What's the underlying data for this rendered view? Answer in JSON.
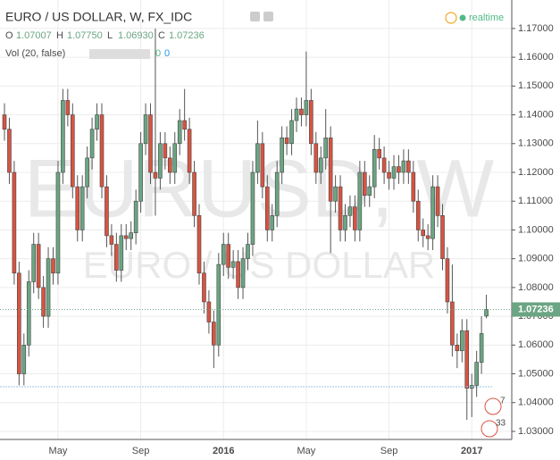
{
  "chart_data": {
    "type": "candlestick",
    "title": "EURO / US DOLLAR, W, FX_IDC",
    "status": "realtime",
    "watermark": "EURUSD, W",
    "watermark_sub": "EURO / US DOLLAR",
    "ohlc_legend": [
      {
        "label": "O",
        "value": "1.07007"
      },
      {
        "label": "H",
        "value": "1.07750"
      },
      {
        "label": "L",
        "value": "1.06930"
      },
      {
        "label": "C",
        "value": "1.07236"
      }
    ],
    "volume_legend": {
      "label": "Vol (20, false)",
      "values": [
        "0",
        "0"
      ]
    },
    "events": [
      "7",
      "33"
    ],
    "up_color": "#6ba583",
    "down_color": "#d75442",
    "grid": true,
    "categories": [
      null,
      null,
      null,
      null,
      null,
      null,
      null,
      null,
      null,
      null,
      null,
      "May",
      null,
      null,
      null,
      null,
      null,
      null,
      null,
      null,
      null,
      null,
      null,
      null,
      null,
      null,
      null,
      null,
      "Sep",
      null,
      null,
      null,
      null,
      null,
      null,
      null,
      null,
      null,
      null,
      null,
      null,
      null,
      null,
      null,
      null,
      "2016",
      null,
      null,
      null,
      null,
      null,
      null,
      null,
      null,
      null,
      null,
      null,
      null,
      null,
      null,
      null,
      null,
      "May",
      null,
      null,
      null,
      null,
      null,
      null,
      null,
      null,
      null,
      null,
      null,
      null,
      null,
      null,
      null,
      null,
      "Sep",
      null,
      null,
      null,
      null,
      null,
      null,
      null,
      null,
      null,
      null,
      null,
      null,
      null,
      null,
      null,
      null,
      "2017",
      null,
      null,
      null
    ],
    "open": [
      1.14,
      1.135,
      1.12,
      1.085,
      1.05,
      1.06,
      1.082,
      1.095,
      1.08,
      1.07,
      1.09,
      1.085,
      1.12,
      1.145,
      1.14,
      1.115,
      1.1,
      1.115,
      1.125,
      1.135,
      1.14,
      1.115,
      1.098,
      1.095,
      1.086,
      1.098,
      1.097,
      1.099,
      1.11,
      1.13,
      1.14,
      1.12,
      1.118,
      1.13,
      1.125,
      1.12,
      1.13,
      1.138,
      1.135,
      1.12,
      1.105,
      1.085,
      1.075,
      1.068,
      1.06,
      1.088,
      1.095,
      1.087,
      1.089,
      1.08,
      1.09,
      1.095,
      1.12,
      1.13,
      1.115,
      1.1,
      1.105,
      1.12,
      1.132,
      1.13,
      1.138,
      1.142,
      1.14,
      1.145,
      1.13,
      1.12,
      1.125,
      1.132,
      1.11,
      1.115,
      1.1,
      1.105,
      1.108,
      1.1,
      1.12,
      1.112,
      1.115,
      1.128,
      1.125,
      1.12,
      1.118,
      1.122,
      1.12,
      1.124,
      1.12,
      1.11,
      1.1,
      1.098,
      1.097,
      1.115,
      1.105,
      1.09,
      1.075,
      1.06,
      1.058,
      1.065,
      1.045,
      1.046,
      1.054,
      1.07007
    ],
    "high": [
      1.144,
      1.139,
      1.124,
      1.089,
      1.064,
      1.086,
      1.099,
      1.099,
      1.084,
      1.094,
      1.094,
      1.124,
      1.149,
      1.149,
      1.144,
      1.119,
      1.119,
      1.129,
      1.139,
      1.144,
      1.144,
      1.119,
      1.102,
      1.099,
      1.102,
      1.102,
      1.103,
      1.114,
      1.134,
      1.144,
      1.144,
      1.17,
      1.134,
      1.134,
      1.129,
      1.134,
      1.142,
      1.149,
      1.139,
      1.124,
      1.109,
      1.089,
      1.079,
      1.072,
      1.092,
      1.099,
      1.099,
      1.093,
      1.093,
      1.094,
      1.099,
      1.124,
      1.138,
      1.134,
      1.119,
      1.109,
      1.124,
      1.136,
      1.136,
      1.142,
      1.146,
      1.146,
      1.162,
      1.149,
      1.134,
      1.129,
      1.142,
      1.136,
      1.119,
      1.119,
      1.109,
      1.112,
      1.112,
      1.124,
      1.124,
      1.119,
      1.133,
      1.132,
      1.129,
      1.124,
      1.126,
      1.126,
      1.128,
      1.128,
      1.124,
      1.114,
      1.104,
      1.102,
      1.119,
      1.119,
      1.109,
      1.094,
      1.088,
      1.064,
      1.069,
      1.069,
      1.05,
      1.058,
      1.07,
      1.0775
    ],
    "low": [
      1.131,
      1.116,
      1.081,
      1.046,
      1.046,
      1.056,
      1.078,
      1.076,
      1.066,
      1.066,
      1.081,
      1.081,
      1.116,
      1.136,
      1.111,
      1.096,
      1.096,
      1.111,
      1.121,
      1.131,
      1.111,
      1.094,
      1.091,
      1.082,
      1.082,
      1.093,
      1.093,
      1.095,
      1.106,
      1.126,
      1.116,
      1.105,
      1.114,
      1.121,
      1.116,
      1.116,
      1.126,
      1.131,
      1.116,
      1.101,
      1.081,
      1.071,
      1.064,
      1.052,
      1.056,
      1.084,
      1.083,
      1.083,
      1.076,
      1.076,
      1.086,
      1.091,
      1.116,
      1.111,
      1.096,
      1.096,
      1.101,
      1.116,
      1.126,
      1.126,
      1.134,
      1.136,
      1.136,
      1.126,
      1.116,
      1.116,
      1.121,
      1.092,
      1.106,
      1.096,
      1.096,
      1.101,
      1.096,
      1.096,
      1.108,
      1.108,
      1.111,
      1.121,
      1.116,
      1.114,
      1.114,
      1.116,
      1.116,
      1.116,
      1.106,
      1.096,
      1.094,
      1.093,
      1.093,
      1.101,
      1.086,
      1.071,
      1.056,
      1.052,
      1.054,
      1.034,
      1.035,
      1.042,
      1.05,
      1.0693
    ],
    "close": [
      1.135,
      1.12,
      1.085,
      1.05,
      1.06,
      1.082,
      1.095,
      1.08,
      1.07,
      1.09,
      1.085,
      1.12,
      1.145,
      1.14,
      1.115,
      1.1,
      1.115,
      1.125,
      1.135,
      1.14,
      1.115,
      1.098,
      1.095,
      1.086,
      1.098,
      1.097,
      1.099,
      1.11,
      1.13,
      1.14,
      1.12,
      1.118,
      1.13,
      1.125,
      1.12,
      1.13,
      1.138,
      1.135,
      1.12,
      1.105,
      1.085,
      1.075,
      1.068,
      1.06,
      1.088,
      1.095,
      1.087,
      1.089,
      1.08,
      1.09,
      1.095,
      1.12,
      1.13,
      1.115,
      1.1,
      1.105,
      1.12,
      1.132,
      1.13,
      1.138,
      1.142,
      1.14,
      1.145,
      1.13,
      1.12,
      1.125,
      1.132,
      1.11,
      1.115,
      1.1,
      1.105,
      1.108,
      1.1,
      1.12,
      1.112,
      1.115,
      1.128,
      1.125,
      1.12,
      1.118,
      1.122,
      1.12,
      1.124,
      1.12,
      1.11,
      1.1,
      1.098,
      1.097,
      1.115,
      1.105,
      1.09,
      1.075,
      1.06,
      1.058,
      1.065,
      1.045,
      1.046,
      1.054,
      1.064,
      1.07236
    ],
    "ylim": [
      1.0272,
      1.1799
    ],
    "yticks": [
      {
        "value": 1.17,
        "label": "1.17000"
      },
      {
        "value": 1.16,
        "label": "1.16000"
      },
      {
        "value": 1.15,
        "label": "1.15000"
      },
      {
        "value": 1.14,
        "label": "1.14000"
      },
      {
        "value": 1.13,
        "label": "1.13000"
      },
      {
        "value": 1.12,
        "label": "1.12000"
      },
      {
        "value": 1.11,
        "label": "1.11000"
      },
      {
        "value": 1.1,
        "label": "1.10000"
      },
      {
        "value": 1.09,
        "label": "1.09000"
      },
      {
        "value": 1.08,
        "label": "1.08000"
      },
      {
        "value": 1.07,
        "label": "1.07000"
      },
      {
        "value": 1.06,
        "label": "1.06000"
      },
      {
        "value": 1.05,
        "label": "1.05000"
      },
      {
        "value": 1.04,
        "label": "1.04000"
      },
      {
        "value": 1.03,
        "label": "1.03000"
      }
    ]
  }
}
